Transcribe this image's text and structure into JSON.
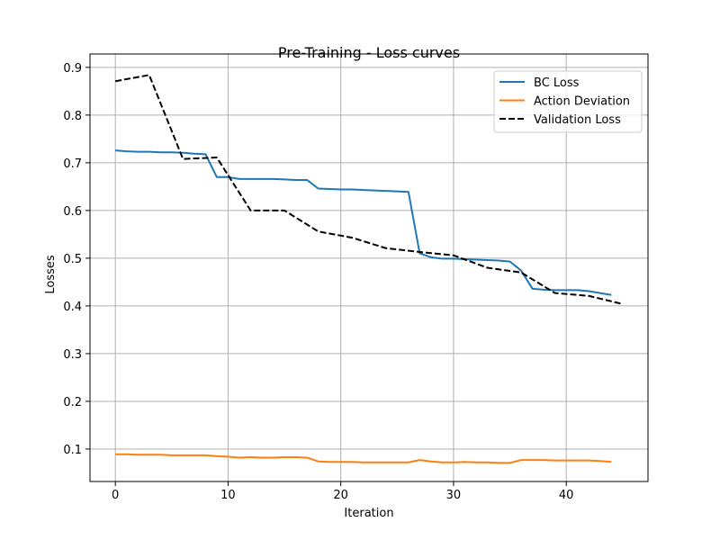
{
  "chart_data": {
    "type": "line",
    "title": "Pre-Training - Loss curves",
    "xlabel": "Iteration",
    "ylabel": "Losses",
    "xlim": [
      -2.25,
      47.25
    ],
    "ylim": [
      0.032,
      0.928
    ],
    "xticks": [
      0,
      10,
      20,
      30,
      40
    ],
    "yticks": [
      0.1,
      0.2,
      0.3,
      0.4,
      0.5,
      0.6,
      0.7,
      0.8,
      0.9
    ],
    "xtick_labels": [
      "0",
      "10",
      "20",
      "30",
      "40"
    ],
    "ytick_labels": [
      "0.1",
      "0.2",
      "0.3",
      "0.4",
      "0.5",
      "0.6",
      "0.7",
      "0.8",
      "0.9"
    ],
    "grid": true,
    "legend_position": "top-right",
    "series": [
      {
        "name": "BC Loss",
        "color": "#1f77b4",
        "style": "solid",
        "x": [
          0,
          1,
          2,
          3,
          4,
          5,
          6,
          7,
          8,
          9,
          10,
          11,
          12,
          13,
          14,
          15,
          16,
          17,
          18,
          19,
          20,
          21,
          22,
          23,
          24,
          25,
          26,
          27,
          28,
          29,
          30,
          31,
          32,
          33,
          34,
          35,
          36,
          37,
          38,
          39,
          40,
          41,
          42,
          43,
          44
        ],
        "y": [
          0.726,
          0.724,
          0.723,
          0.723,
          0.722,
          0.722,
          0.721,
          0.719,
          0.718,
          0.67,
          0.67,
          0.666,
          0.666,
          0.666,
          0.666,
          0.665,
          0.664,
          0.664,
          0.646,
          0.645,
          0.644,
          0.644,
          0.643,
          0.642,
          0.641,
          0.64,
          0.639,
          0.51,
          0.502,
          0.499,
          0.499,
          0.498,
          0.497,
          0.496,
          0.495,
          0.493,
          0.474,
          0.436,
          0.434,
          0.433,
          0.433,
          0.433,
          0.431,
          0.427,
          0.423
        ]
      },
      {
        "name": "Action Deviation",
        "color": "#ff7f0e",
        "style": "solid",
        "x": [
          0,
          1,
          2,
          3,
          4,
          5,
          6,
          7,
          8,
          9,
          10,
          11,
          12,
          13,
          14,
          15,
          16,
          17,
          18,
          19,
          20,
          21,
          22,
          23,
          24,
          25,
          26,
          27,
          28,
          29,
          30,
          31,
          32,
          33,
          34,
          35,
          36,
          37,
          38,
          39,
          40,
          41,
          42,
          43,
          44
        ],
        "y": [
          0.089,
          0.089,
          0.088,
          0.088,
          0.088,
          0.087,
          0.087,
          0.087,
          0.087,
          0.085,
          0.084,
          0.082,
          0.083,
          0.082,
          0.082,
          0.083,
          0.083,
          0.082,
          0.074,
          0.073,
          0.073,
          0.073,
          0.072,
          0.072,
          0.072,
          0.072,
          0.072,
          0.077,
          0.074,
          0.072,
          0.072,
          0.073,
          0.072,
          0.072,
          0.071,
          0.071,
          0.077,
          0.077,
          0.077,
          0.076,
          0.076,
          0.076,
          0.076,
          0.075,
          0.073
        ]
      },
      {
        "name": "Validation Loss",
        "color": "#000000",
        "style": "dashed",
        "x": [
          0,
          3,
          6,
          9,
          12,
          15,
          18,
          21,
          24,
          27,
          30,
          33,
          36,
          39,
          42,
          45
        ],
        "y": [
          0.871,
          0.884,
          0.708,
          0.711,
          0.6,
          0.6,
          0.556,
          0.543,
          0.521,
          0.513,
          0.506,
          0.48,
          0.47,
          0.427,
          0.421,
          0.404
        ]
      }
    ]
  }
}
